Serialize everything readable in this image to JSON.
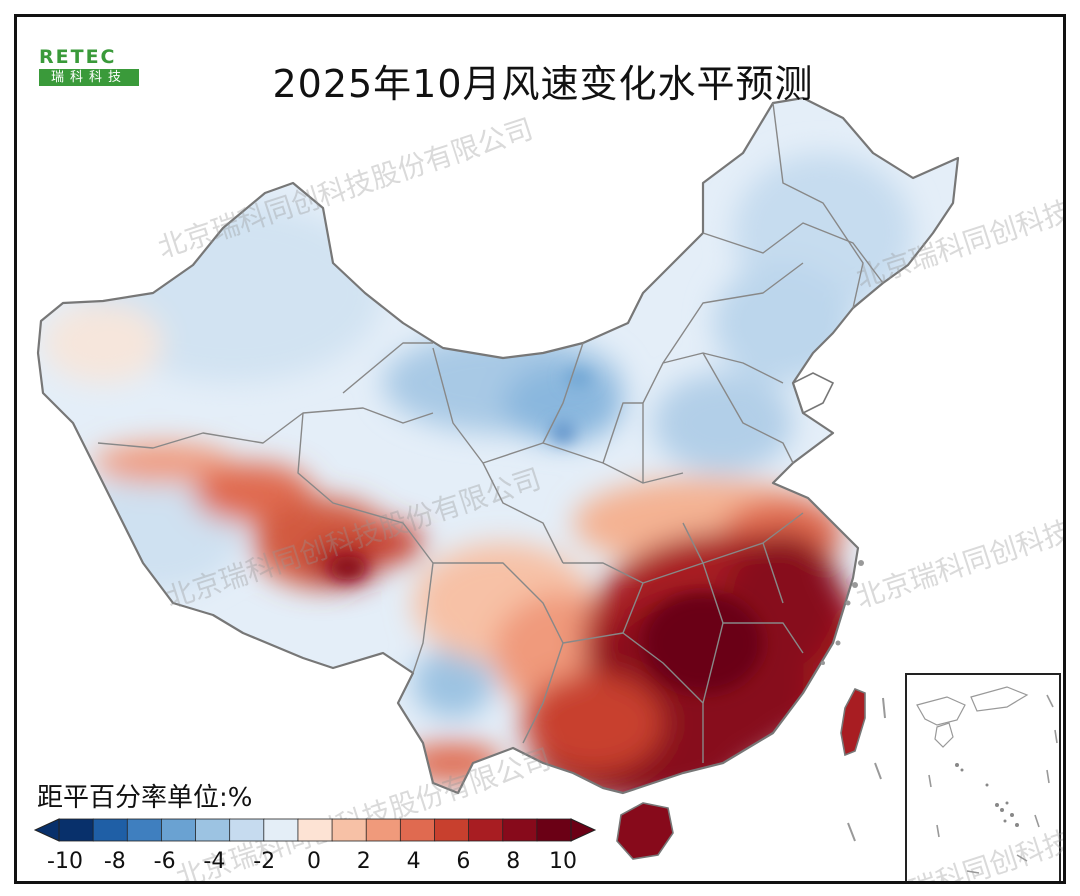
{
  "title": "2025年10月风速变化水平预测",
  "logo": {
    "top": "RETEC",
    "bottom": "瑞科科技"
  },
  "watermark": "北京瑞科同创科技股份有限公司",
  "legend": {
    "title": "距平百分率单位:%",
    "tick_labels": [
      "-10",
      "-8",
      "-6",
      "-4",
      "-2",
      "0",
      "2",
      "4",
      "6",
      "8",
      "10"
    ],
    "colors": [
      "#08306b",
      "#1f5fa6",
      "#3f7fbf",
      "#6aa2d2",
      "#9cc3e2",
      "#c6dbef",
      "#e4eef7",
      "#fde3d4",
      "#f7c1a6",
      "#f09a7b",
      "#e06a50",
      "#c8402e",
      "#a81d22",
      "#870a1b",
      "#6b0015"
    ]
  },
  "colors": {
    "land_base": "#e4eef8",
    "border": "#777777",
    "frame": "#111111",
    "logo_green": "#3a9a3a"
  }
}
